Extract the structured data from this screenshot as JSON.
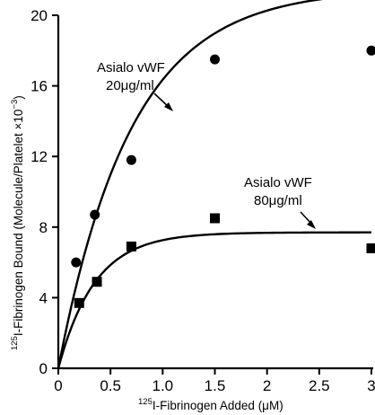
{
  "chart_data": {
    "type": "scatter",
    "xlabel_sup": "125",
    "xlabel": "I-Fibrinogen Added (μM)",
    "ylabel_sup": "125",
    "ylabel": "I-Fibrinogen Bound (Molecule/Platelet ×10",
    "ylabel_exp": "−3",
    "ylabel_end": ")",
    "xlim": [
      0,
      3
    ],
    "ylim": [
      0,
      20
    ],
    "x_ticks": [
      {
        "v": 0,
        "label": "0"
      },
      {
        "v": 0.5,
        "label": "0.5"
      },
      {
        "v": 1.0,
        "label": "1.0"
      },
      {
        "v": 1.5,
        "label": "1.5"
      },
      {
        "v": 2.0,
        "label": "2"
      },
      {
        "v": 2.5,
        "label": "2.5"
      },
      {
        "v": 3.0,
        "label": "3"
      }
    ],
    "y_ticks": [
      {
        "v": 0,
        "label": "0"
      },
      {
        "v": 4,
        "label": "4"
      },
      {
        "v": 8,
        "label": "8"
      },
      {
        "v": 12,
        "label": "12"
      },
      {
        "v": 16,
        "label": "16"
      },
      {
        "v": 20,
        "label": "20"
      }
    ],
    "grid": false,
    "series": [
      {
        "name_line1": "Asialo vWF",
        "name_line2": "20μg/ml",
        "marker": "circle",
        "points": [
          [
            0.17,
            6.0
          ],
          [
            0.35,
            8.7
          ],
          [
            0.7,
            11.8
          ],
          [
            1.5,
            17.5
          ],
          [
            3.0,
            18.0
          ]
        ],
        "fit": {
          "ymax": 21.5,
          "k": 0.7
        }
      },
      {
        "name_line1": "Asialo vWF",
        "name_line2": "80μg/ml",
        "marker": "square",
        "points": [
          [
            0.2,
            3.7
          ],
          [
            0.37,
            4.9
          ],
          [
            0.7,
            6.9
          ],
          [
            1.5,
            8.5
          ],
          [
            3.0,
            6.8
          ]
        ],
        "fit": {
          "ymax": 7.7,
          "k": 0.35
        }
      }
    ]
  }
}
